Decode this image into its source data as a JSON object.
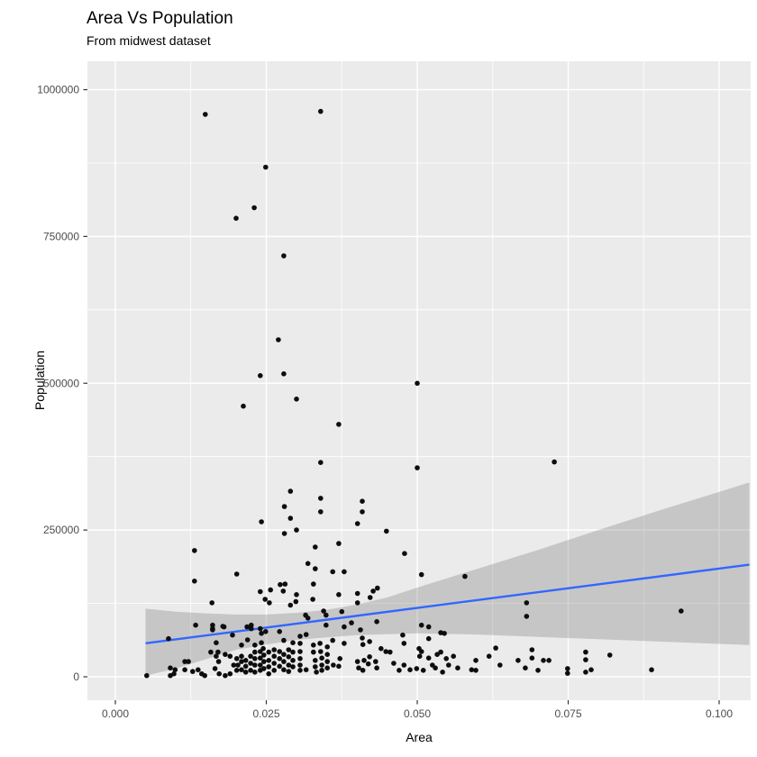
{
  "chart_data": {
    "type": "scatter",
    "title": "Area Vs Population",
    "subtitle": "From midwest dataset",
    "xlabel": "Area",
    "ylabel": "Population",
    "x_ticks": [
      0.0,
      0.025,
      0.05,
      0.075,
      0.1
    ],
    "x_tick_labels": [
      "0.000",
      "0.025",
      "0.050",
      "0.075",
      "0.100"
    ],
    "y_ticks": [
      0,
      250000,
      500000,
      750000,
      1000000
    ],
    "y_tick_labels": [
      "0",
      "250000",
      "500000",
      "750000",
      "1000000"
    ],
    "xlim": [
      -0.0046,
      0.1052
    ],
    "ylim": [
      -40000,
      1049000
    ],
    "grid": "white major and minor gridlines on grey panel",
    "legend": "none",
    "colors": {
      "panel": "#EBEBEB",
      "grid_major": "#FFFFFF",
      "grid_minor": "#FFFFFF",
      "point": "#0d0d0d",
      "line": "#3366FF",
      "ribbon": "rgba(125,125,125,0.33)",
      "tick_text": "#4D4D4D",
      "tick_mark": "#333333",
      "title_text": "#000000"
    },
    "smooth_line": {
      "method": "lm",
      "x0": 0.005,
      "y0": 57000,
      "x1": 0.105,
      "y1": 191000
    },
    "ribbon": {
      "upper": [
        [
          0.005,
          116000
        ],
        [
          0.01,
          111000
        ],
        [
          0.015,
          108000
        ],
        [
          0.02,
          106000
        ],
        [
          0.025,
          106000
        ],
        [
          0.03,
          109000
        ],
        [
          0.035,
          114000
        ],
        [
          0.04,
          123000
        ],
        [
          0.045,
          135000
        ],
        [
          0.05,
          152000
        ],
        [
          0.055,
          168000
        ],
        [
          0.06,
          184000
        ],
        [
          0.07,
          216000
        ],
        [
          0.08,
          250000
        ],
        [
          0.09,
          283000
        ],
        [
          0.105,
          331000
        ]
      ],
      "lower": [
        [
          0.005,
          2000
        ],
        [
          0.01,
          14000
        ],
        [
          0.015,
          30000
        ],
        [
          0.02,
          46000
        ],
        [
          0.025,
          55000
        ],
        [
          0.03,
          63000
        ],
        [
          0.04,
          71000
        ],
        [
          0.05,
          74000
        ],
        [
          0.06,
          72000
        ],
        [
          0.07,
          68000
        ],
        [
          0.08,
          64000
        ],
        [
          0.09,
          60000
        ],
        [
          0.105,
          54000
        ]
      ]
    },
    "points": [
      [
        0.0149,
        958000
      ],
      [
        0.034,
        963000
      ],
      [
        0.0249,
        868000
      ],
      [
        0.023,
        799000
      ],
      [
        0.02,
        781000
      ],
      [
        0.0279,
        717000
      ],
      [
        0.027,
        574000
      ],
      [
        0.024,
        513000
      ],
      [
        0.0279,
        516000
      ],
      [
        0.05,
        500000
      ],
      [
        0.03,
        473000
      ],
      [
        0.0212,
        461000
      ],
      [
        0.037,
        430000
      ],
      [
        0.034,
        365000
      ],
      [
        0.05,
        356000
      ],
      [
        0.0727,
        366000
      ],
      [
        0.029,
        316000
      ],
      [
        0.034,
        304000
      ],
      [
        0.028,
        290000
      ],
      [
        0.034,
        281000
      ],
      [
        0.0409,
        299000
      ],
      [
        0.0409,
        281000
      ],
      [
        0.0242,
        264000
      ],
      [
        0.029,
        270000
      ],
      [
        0.0401,
        261000
      ],
      [
        0.028,
        244000
      ],
      [
        0.03,
        250000
      ],
      [
        0.0449,
        248000
      ],
      [
        0.0131,
        215000
      ],
      [
        0.0331,
        221000
      ],
      [
        0.037,
        227000
      ],
      [
        0.0319,
        193000
      ],
      [
        0.0331,
        184000
      ],
      [
        0.036,
        179000
      ],
      [
        0.0379,
        179000
      ],
      [
        0.0479,
        210000
      ],
      [
        0.0201,
        175000
      ],
      [
        0.0507,
        174000
      ],
      [
        0.0579,
        171000
      ],
      [
        0.0131,
        163000
      ],
      [
        0.024,
        145000
      ],
      [
        0.0257,
        148000
      ],
      [
        0.0248,
        132000
      ],
      [
        0.0273,
        157000
      ],
      [
        0.0281,
        158000
      ],
      [
        0.0278,
        146000
      ],
      [
        0.03,
        140000
      ],
      [
        0.0299,
        128000
      ],
      [
        0.029,
        122000
      ],
      [
        0.0255,
        126000
      ],
      [
        0.0315,
        105000
      ],
      [
        0.0319,
        100000
      ],
      [
        0.0328,
        158000
      ],
      [
        0.0327,
        132000
      ],
      [
        0.0345,
        112000
      ],
      [
        0.0349,
        105000
      ],
      [
        0.037,
        140000
      ],
      [
        0.0375,
        111000
      ],
      [
        0.0391,
        92000
      ],
      [
        0.0401,
        126000
      ],
      [
        0.0401,
        142000
      ],
      [
        0.0422,
        135000
      ],
      [
        0.0427,
        146000
      ],
      [
        0.0434,
        151000
      ],
      [
        0.0218,
        85000
      ],
      [
        0.0225,
        82000
      ],
      [
        0.016,
        126000
      ],
      [
        0.0161,
        82000
      ],
      [
        0.0178,
        86000
      ],
      [
        0.0681,
        126000
      ],
      [
        0.0681,
        103000
      ],
      [
        0.0937,
        112000
      ],
      [
        0.0519,
        85000
      ],
      [
        0.0539,
        75000
      ],
      [
        0.0052,
        2000
      ],
      [
        0.0091,
        2000
      ],
      [
        0.0097,
        5000
      ],
      [
        0.0091,
        15000
      ],
      [
        0.0099,
        12000
      ],
      [
        0.0088,
        65000
      ],
      [
        0.0115,
        26000
      ],
      [
        0.0121,
        26000
      ],
      [
        0.0115,
        12000
      ],
      [
        0.0128,
        9000
      ],
      [
        0.0137,
        12000
      ],
      [
        0.0143,
        5000
      ],
      [
        0.0148,
        2000
      ],
      [
        0.0158,
        42000
      ],
      [
        0.017,
        42000
      ],
      [
        0.0161,
        80000
      ],
      [
        0.018,
        85000
      ],
      [
        0.0182,
        38000
      ],
      [
        0.019,
        35000
      ],
      [
        0.0171,
        26000
      ],
      [
        0.0165,
        14000
      ],
      [
        0.0172,
        5000
      ],
      [
        0.0182,
        2000
      ],
      [
        0.019,
        5000
      ],
      [
        0.0196,
        20000
      ],
      [
        0.0201,
        31000
      ],
      [
        0.0203,
        20000
      ],
      [
        0.0201,
        11000
      ],
      [
        0.0209,
        12000
      ],
      [
        0.0209,
        26000
      ],
      [
        0.0209,
        35000
      ],
      [
        0.0216,
        28000
      ],
      [
        0.0216,
        18000
      ],
      [
        0.0216,
        8000
      ],
      [
        0.0224,
        35000
      ],
      [
        0.0224,
        23000
      ],
      [
        0.0224,
        11000
      ],
      [
        0.0231,
        42000
      ],
      [
        0.0231,
        31000
      ],
      [
        0.0231,
        20000
      ],
      [
        0.0231,
        8000
      ],
      [
        0.024,
        43000
      ],
      [
        0.024,
        32000
      ],
      [
        0.024,
        20000
      ],
      [
        0.024,
        11000
      ],
      [
        0.0246,
        37000
      ],
      [
        0.0246,
        26000
      ],
      [
        0.0246,
        14000
      ],
      [
        0.0254,
        42000
      ],
      [
        0.0254,
        28000
      ],
      [
        0.0254,
        17000
      ],
      [
        0.0254,
        5000
      ],
      [
        0.0263,
        46000
      ],
      [
        0.0263,
        35000
      ],
      [
        0.0263,
        23000
      ],
      [
        0.0263,
        11000
      ],
      [
        0.0272,
        43000
      ],
      [
        0.0272,
        31000
      ],
      [
        0.0272,
        18000
      ],
      [
        0.0279,
        38000
      ],
      [
        0.0279,
        26000
      ],
      [
        0.0279,
        12000
      ],
      [
        0.0287,
        46000
      ],
      [
        0.0287,
        34000
      ],
      [
        0.0287,
        20000
      ],
      [
        0.0287,
        9000
      ],
      [
        0.0294,
        42000
      ],
      [
        0.0294,
        28000
      ],
      [
        0.0294,
        17000
      ],
      [
        0.0225,
        88000
      ],
      [
        0.0249,
        77000
      ],
      [
        0.0272,
        77000
      ],
      [
        0.0279,
        62000
      ],
      [
        0.0294,
        58000
      ],
      [
        0.0133,
        88000
      ],
      [
        0.0161,
        88000
      ],
      [
        0.0231,
        54000
      ],
      [
        0.0209,
        54000
      ],
      [
        0.0194,
        71000
      ],
      [
        0.0219,
        63000
      ],
      [
        0.0242,
        74000
      ],
      [
        0.0242,
        58000
      ],
      [
        0.0245,
        48000
      ],
      [
        0.024,
        82000
      ],
      [
        0.0167,
        58000
      ],
      [
        0.0167,
        35000
      ],
      [
        0.0306,
        69000
      ],
      [
        0.0306,
        57000
      ],
      [
        0.0306,
        43000
      ],
      [
        0.0306,
        31000
      ],
      [
        0.0306,
        20000
      ],
      [
        0.0306,
        11000
      ],
      [
        0.0316,
        72000
      ],
      [
        0.0316,
        12000
      ],
      [
        0.0328,
        54000
      ],
      [
        0.0328,
        42000
      ],
      [
        0.0331,
        28000
      ],
      [
        0.0331,
        17000
      ],
      [
        0.0333,
        8000
      ],
      [
        0.0339,
        57000
      ],
      [
        0.034,
        43000
      ],
      [
        0.0342,
        32000
      ],
      [
        0.0342,
        20000
      ],
      [
        0.0342,
        11000
      ],
      [
        0.0349,
        88000
      ],
      [
        0.0351,
        51000
      ],
      [
        0.0351,
        38000
      ],
      [
        0.0351,
        26000
      ],
      [
        0.0351,
        15000
      ],
      [
        0.036,
        62000
      ],
      [
        0.0361,
        20000
      ],
      [
        0.037,
        18000
      ],
      [
        0.0372,
        31000
      ],
      [
        0.0379,
        57000
      ],
      [
        0.0379,
        85000
      ],
      [
        0.0406,
        80000
      ],
      [
        0.0409,
        66000
      ],
      [
        0.041,
        55000
      ],
      [
        0.0401,
        26000
      ],
      [
        0.0403,
        15000
      ],
      [
        0.041,
        11000
      ],
      [
        0.0412,
        28000
      ],
      [
        0.0419,
        22000
      ],
      [
        0.0421,
        34000
      ],
      [
        0.0421,
        60000
      ],
      [
        0.0431,
        26000
      ],
      [
        0.0433,
        15000
      ],
      [
        0.0433,
        94000
      ],
      [
        0.044,
        48000
      ],
      [
        0.0448,
        43000
      ],
      [
        0.0455,
        42000
      ],
      [
        0.0461,
        23000
      ],
      [
        0.0476,
        71000
      ],
      [
        0.0478,
        57000
      ],
      [
        0.0478,
        20000
      ],
      [
        0.047,
        11000
      ],
      [
        0.0488,
        12000
      ],
      [
        0.0499,
        14000
      ],
      [
        0.0503,
        48000
      ],
      [
        0.0504,
        35000
      ],
      [
        0.0507,
        43000
      ],
      [
        0.051,
        11000
      ],
      [
        0.0507,
        88000
      ],
      [
        0.0519,
        65000
      ],
      [
        0.0519,
        32000
      ],
      [
        0.0525,
        20000
      ],
      [
        0.0533,
        38000
      ],
      [
        0.053,
        15000
      ],
      [
        0.0542,
        8000
      ],
      [
        0.0539,
        42000
      ],
      [
        0.0545,
        74000
      ],
      [
        0.0548,
        31000
      ],
      [
        0.0552,
        20000
      ],
      [
        0.056,
        35000
      ],
      [
        0.0567,
        15000
      ],
      [
        0.0597,
        28000
      ],
      [
        0.0597,
        11000
      ],
      [
        0.059,
        12000
      ],
      [
        0.063,
        49000
      ],
      [
        0.0619,
        35000
      ],
      [
        0.0637,
        20000
      ],
      [
        0.0667,
        28000
      ],
      [
        0.0679,
        15000
      ],
      [
        0.069,
        46000
      ],
      [
        0.069,
        32000
      ],
      [
        0.07,
        11000
      ],
      [
        0.0709,
        28000
      ],
      [
        0.0718,
        28000
      ],
      [
        0.0749,
        14000
      ],
      [
        0.0749,
        6000
      ],
      [
        0.0779,
        42000
      ],
      [
        0.0779,
        29000
      ],
      [
        0.0779,
        8000
      ],
      [
        0.0788,
        12000
      ],
      [
        0.0819,
        37000
      ],
      [
        0.0888,
        12000
      ]
    ]
  }
}
